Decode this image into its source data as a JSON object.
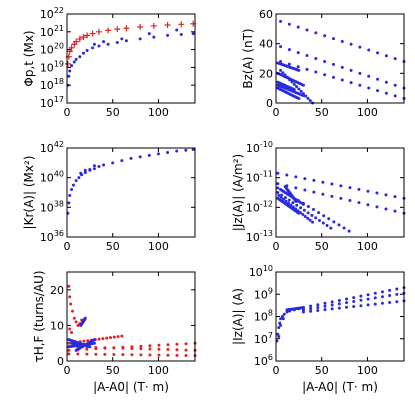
{
  "colors": {
    "blue": "#2a2ae0",
    "red": "#e02424",
    "axis": "#000000"
  },
  "xlabel": "|A-A0| (T· m)",
  "chart_data": [
    {
      "id": "phi",
      "type": "scatter",
      "ylog": true,
      "ylabel": "Φp,t (Mx)",
      "xlim": [
        0,
        140
      ],
      "ylim_exp": [
        17,
        22
      ],
      "xticks": [
        "0",
        "50",
        "100"
      ],
      "yticks": [
        "10^17",
        "10^18",
        "10^19",
        "10^20",
        "10^21",
        "10^22"
      ],
      "series": [
        {
          "color": "red",
          "marker": "plus",
          "points": [
            [
              1,
              19.2
            ],
            [
              2,
              19.6
            ],
            [
              3,
              19.9
            ],
            [
              5,
              20.1
            ],
            [
              8,
              20.3
            ],
            [
              10,
              20.45
            ],
            [
              14,
              20.6
            ],
            [
              18,
              20.7
            ],
            [
              22,
              20.8
            ],
            [
              28,
              20.9
            ],
            [
              35,
              21.0
            ],
            [
              45,
              21.08
            ],
            [
              55,
              21.15
            ],
            [
              65,
              21.2
            ],
            [
              80,
              21.27
            ],
            [
              95,
              21.33
            ],
            [
              110,
              21.38
            ],
            [
              125,
              21.42
            ],
            [
              138,
              21.45
            ]
          ]
        },
        {
          "color": "blue",
          "marker": "dot",
          "points": [
            [
              1,
              18.0
            ],
            [
              2,
              18.5
            ],
            [
              3,
              18.8
            ],
            [
              5,
              19.1
            ],
            [
              8,
              19.3
            ],
            [
              10,
              19.45
            ],
            [
              14,
              19.6
            ],
            [
              18,
              19.8
            ],
            [
              22,
              19.95
            ],
            [
              28,
              20.1
            ],
            [
              35,
              20.2
            ],
            [
              45,
              20.3
            ],
            [
              55,
              20.4
            ],
            [
              65,
              20.5
            ],
            [
              80,
              20.6
            ],
            [
              95,
              20.7
            ],
            [
              110,
              20.8
            ],
            [
              125,
              20.85
            ],
            [
              138,
              20.9
            ],
            [
              30,
              20.3
            ],
            [
              40,
              20.45
            ],
            [
              60,
              20.6
            ],
            [
              90,
              20.9
            ],
            [
              120,
              21.1
            ]
          ]
        }
      ]
    },
    {
      "id": "bz",
      "type": "scatter",
      "ylog": false,
      "ylabel": "Bz(A) (nT)",
      "xlim": [
        0,
        140
      ],
      "ylim": [
        0,
        60
      ],
      "xticks": [
        "0",
        "50",
        "100"
      ],
      "yticks": [
        "0",
        "20",
        "40",
        "60"
      ],
      "series": [
        {
          "color": "blue",
          "marker": "dot",
          "lines": [
            [
              [
                5,
                55
              ],
              [
                140,
                28
              ]
            ],
            [
              [
                5,
                38
              ],
              [
                140,
                10
              ]
            ],
            [
              [
                5,
                28
              ],
              [
                140,
                3
              ]
            ],
            [
              [
                5,
                22
              ],
              [
                40,
                0
              ]
            ],
            [
              [
                2,
                27
              ],
              [
                25,
                22
              ]
            ],
            [
              [
                2,
                20
              ],
              [
                30,
                12
              ]
            ],
            [
              [
                2,
                14
              ],
              [
                20,
                9
              ]
            ],
            [
              [
                2,
                12
              ],
              [
                30,
                5
              ]
            ],
            [
              [
                2,
                10
              ],
              [
                25,
                3
              ]
            ]
          ]
        }
      ]
    },
    {
      "id": "kr",
      "type": "scatter",
      "ylog": true,
      "ylabel": "|Kr(A)| (Mx²)",
      "xlim": [
        0,
        140
      ],
      "ylim_exp": [
        36,
        42
      ],
      "xticks": [
        "0",
        "50",
        "100"
      ],
      "yticks": [
        "10^36",
        "10^38",
        "10^40",
        "10^42"
      ],
      "series": [
        {
          "color": "blue",
          "marker": "dot",
          "points": [
            [
              1,
              37.6
            ],
            [
              2,
              38.3
            ],
            [
              3,
              38.8
            ],
            [
              5,
              39.2
            ],
            [
              7,
              39.5
            ],
            [
              10,
              39.8
            ],
            [
              13,
              40.0
            ],
            [
              16,
              40.2
            ],
            [
              20,
              40.35
            ],
            [
              25,
              40.5
            ],
            [
              30,
              40.6
            ],
            [
              35,
              40.75
            ],
            [
              40,
              40.85
            ],
            [
              50,
              41.0
            ],
            [
              60,
              41.15
            ],
            [
              70,
              41.3
            ],
            [
              80,
              41.4
            ],
            [
              90,
              41.5
            ],
            [
              100,
              41.6
            ],
            [
              110,
              41.7
            ],
            [
              120,
              41.8
            ],
            [
              130,
              41.85
            ],
            [
              138,
              41.9
            ],
            [
              15,
              40.3
            ],
            [
              20,
              40.5
            ],
            [
              25,
              40.55
            ],
            [
              30,
              40.8
            ]
          ]
        }
      ]
    },
    {
      "id": "jz",
      "type": "scatter",
      "ylog": true,
      "ylabel": "|Jz(A)| (A/m²)",
      "xlim": [
        0,
        140
      ],
      "ylim_exp": [
        -13,
        -10
      ],
      "xticks": [
        "0",
        "50",
        "100"
      ],
      "yticks": [
        "10^-13",
        "10^-12",
        "10^-11",
        "10^-10"
      ],
      "series": [
        {
          "color": "blue",
          "marker": "dot",
          "lines": [
            [
              [
                2,
                -10.85
              ],
              [
                140,
                -11.7
              ]
            ],
            [
              [
                2,
                -11.2
              ],
              [
                140,
                -12.2
              ]
            ],
            [
              [
                2,
                -11.35
              ],
              [
                80,
                -12.8
              ]
            ],
            [
              [
                2,
                -11.5
              ],
              [
                60,
                -12.7
              ]
            ],
            [
              [
                3,
                -11.6
              ],
              [
                40,
                -12.5
              ]
            ],
            [
              [
                5,
                -11.4
              ],
              [
                30,
                -11.9
              ]
            ],
            [
              [
                2,
                -11.7
              ],
              [
                25,
                -12.2
              ]
            ],
            [
              [
                10,
                -11.3
              ],
              [
                22,
                -11.8
              ]
            ]
          ]
        }
      ]
    },
    {
      "id": "tau",
      "type": "scatter",
      "ylog": false,
      "ylabel": "τH,F (turns/AU)",
      "xlim": [
        0,
        140
      ],
      "ylim": [
        0,
        25
      ],
      "xticks": [
        "0",
        "50",
        "100"
      ],
      "yticks": [
        "0",
        "10",
        "20"
      ],
      "series": [
        {
          "color": "red",
          "marker": "dot",
          "lines": [
            [
              [
                2,
                5
              ],
              [
                60,
                7
              ]
            ],
            [
              [
                2,
                3
              ],
              [
                140,
                5
              ]
            ],
            [
              [
                2,
                2
              ],
              [
                140,
                1.5
              ]
            ],
            [
              [
                2,
                4
              ],
              [
                140,
                3
              ]
            ]
          ],
          "points": [
            [
              2,
              21
            ],
            [
              3,
              18
            ],
            [
              4,
              16
            ],
            [
              6,
              14
            ],
            [
              8,
              12
            ],
            [
              10,
              11
            ],
            [
              12,
              10
            ],
            [
              14,
              10.5
            ],
            [
              16,
              11.5
            ],
            [
              3,
              9
            ],
            [
              5,
              8
            ]
          ]
        },
        {
          "color": "blue",
          "marker": "dot",
          "lines": [
            [
              [
                2,
                4
              ],
              [
                30,
                5
              ]
            ],
            [
              [
                2,
                6
              ],
              [
                25,
                4
              ]
            ],
            [
              [
                10,
                3
              ],
              [
                30,
                6
              ]
            ],
            [
              [
                15,
                10
              ],
              [
                20,
                12
              ]
            ],
            [
              [
                5,
                5
              ],
              [
                20,
                4.5
              ]
            ]
          ],
          "points": []
        }
      ]
    },
    {
      "id": "iz",
      "type": "scatter",
      "ylog": true,
      "ylabel": "|Iz(A)| (A)",
      "xlim": [
        0,
        140
      ],
      "ylim_exp": [
        6,
        10
      ],
      "xticks": [
        "0",
        "50",
        "100"
      ],
      "yticks": [
        "10^6",
        "10^7",
        "10^8",
        "10^9",
        "10^10"
      ],
      "series": [
        {
          "color": "blue",
          "marker": "dot",
          "lines": [
            [
              [
                30,
                8.4
              ],
              [
                140,
                9.3
              ]
            ],
            [
              [
                30,
                8.3
              ],
              [
                140,
                9.05
              ]
            ],
            [
              [
                30,
                8.2
              ],
              [
                140,
                8.7
              ]
            ],
            [
              [
                12,
                8.3
              ],
              [
                30,
                8.4
              ]
            ]
          ],
          "points": [
            [
              1,
              6.9
            ],
            [
              2,
              7.2
            ],
            [
              3,
              7.5
            ],
            [
              4,
              7.7
            ],
            [
              5,
              7.9
            ],
            [
              7,
              8.0
            ],
            [
              9,
              8.1
            ],
            [
              12,
              8.2
            ],
            [
              15,
              8.25
            ],
            [
              20,
              8.3
            ],
            [
              25,
              8.35
            ],
            [
              3,
              7.1
            ],
            [
              5,
              7.6
            ],
            [
              8,
              7.9
            ]
          ]
        }
      ]
    }
  ]
}
